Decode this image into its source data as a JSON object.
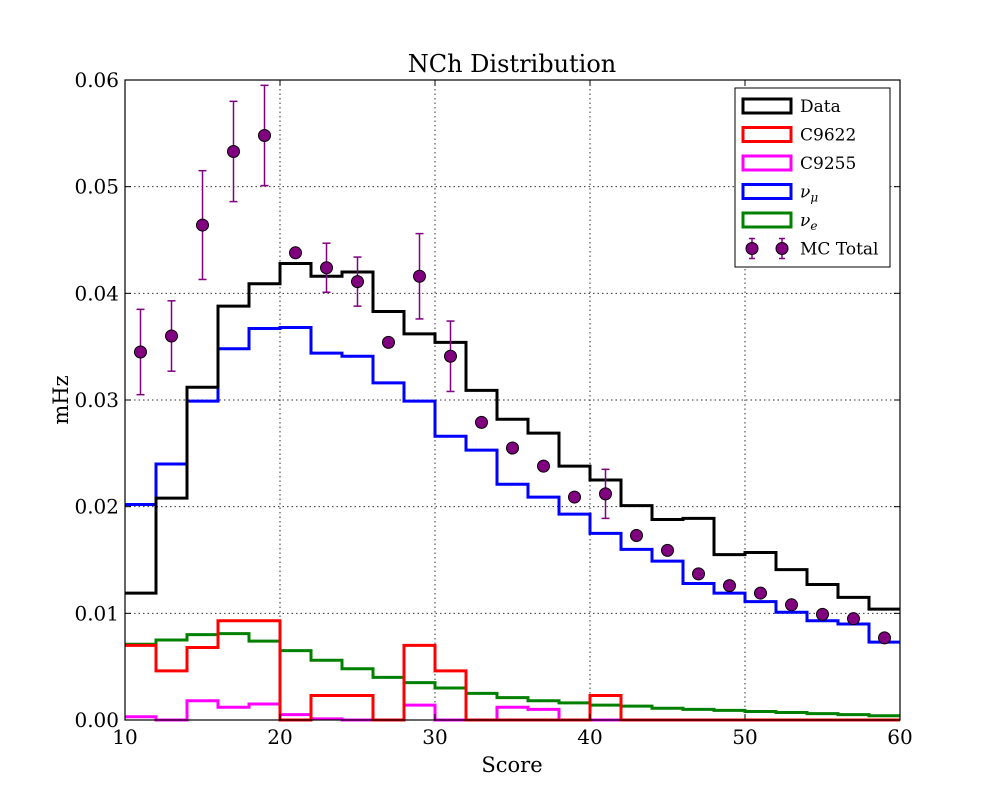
{
  "chart_data": {
    "type": "line",
    "title": "NCh Distribution",
    "xlabel": "Score",
    "ylabel": "mHz",
    "xlim": [
      10,
      60
    ],
    "ylim": [
      0,
      0.06
    ],
    "grid": true,
    "legend_placement": "top-right",
    "x_ticks": [
      10,
      20,
      30,
      40,
      50,
      60
    ],
    "y_ticks": [
      0.0,
      0.01,
      0.02,
      0.03,
      0.04,
      0.05,
      0.06
    ],
    "x_tick_labels": [
      "10",
      "20",
      "30",
      "40",
      "50",
      "60"
    ],
    "y_tick_labels": [
      "0.00",
      "0.01",
      "0.02",
      "0.03",
      "0.04",
      "0.05",
      "0.06"
    ],
    "bin_edges": [
      10,
      12,
      14,
      16,
      18,
      20,
      22,
      24,
      26,
      28,
      30,
      32,
      34,
      36,
      38,
      40,
      42,
      44,
      46,
      48,
      50,
      52,
      54,
      56,
      58,
      60
    ],
    "series": [
      {
        "name": "Data",
        "color": "#000000",
        "style": "step",
        "values": [
          0.0119,
          0.0208,
          0.0312,
          0.0388,
          0.0409,
          0.0428,
          0.0416,
          0.042,
          0.0383,
          0.0362,
          0.0354,
          0.0309,
          0.0282,
          0.0269,
          0.0238,
          0.0225,
          0.0201,
          0.0188,
          0.0189,
          0.0155,
          0.0157,
          0.0141,
          0.0127,
          0.0115,
          0.0104
        ]
      },
      {
        "name": "C9622",
        "color": "#ff0000",
        "style": "step",
        "values": [
          0.007,
          0.0046,
          0.0068,
          0.0093,
          0.0093,
          0.0,
          0.0023,
          0.0023,
          0.0,
          0.007,
          0.0046,
          0.0,
          0.0,
          0.0,
          0.0,
          0.0023,
          0.0,
          0.0,
          0.0,
          0.0,
          0.0,
          0.0,
          0.0,
          0.0,
          0.0
        ]
      },
      {
        "name": "C9255",
        "color": "#ff00ff",
        "style": "step",
        "values": [
          0.0003,
          0.0,
          0.0018,
          0.0012,
          0.0015,
          0.0005,
          0.0001,
          0.0,
          0.0,
          0.0014,
          0.0,
          0.0,
          0.0012,
          0.001,
          0.0,
          0.0,
          0.0,
          0.0,
          0.0,
          0.0,
          0.0,
          0.0,
          0.0,
          0.0,
          0.0
        ]
      },
      {
        "name": "ν_μ",
        "color": "#0000ff",
        "style": "step",
        "values": [
          0.0202,
          0.024,
          0.0299,
          0.0348,
          0.0367,
          0.0368,
          0.0344,
          0.0341,
          0.0316,
          0.0299,
          0.0266,
          0.0253,
          0.0221,
          0.0209,
          0.0193,
          0.0175,
          0.016,
          0.0149,
          0.0128,
          0.0119,
          0.0111,
          0.0101,
          0.0093,
          0.009,
          0.0073
        ]
      },
      {
        "name": "ν_e",
        "color": "#008000",
        "style": "step",
        "values": [
          0.0071,
          0.0075,
          0.008,
          0.0081,
          0.0074,
          0.0065,
          0.0056,
          0.0048,
          0.004,
          0.0035,
          0.003,
          0.0025,
          0.0021,
          0.0018,
          0.0016,
          0.0014,
          0.0013,
          0.0011,
          0.001,
          0.0009,
          0.0008,
          0.0007,
          0.0006,
          0.0005,
          0.0004
        ]
      },
      {
        "name": "MC Total",
        "color": "#800080",
        "style": "errorbar",
        "x": [
          11,
          13,
          15,
          17,
          19,
          21,
          23,
          25,
          27,
          29,
          31,
          33,
          35,
          37,
          39,
          41,
          43,
          45,
          47,
          49,
          51,
          53,
          55,
          57,
          59
        ],
        "values": [
          0.0345,
          0.036,
          0.0464,
          0.0533,
          0.0548,
          0.0438,
          0.0424,
          0.0411,
          0.0354,
          0.0416,
          0.0341,
          0.0279,
          0.0255,
          0.0238,
          0.0209,
          0.0212,
          0.0173,
          0.0159,
          0.0137,
          0.0126,
          0.0119,
          0.0108,
          0.0099,
          0.0095,
          0.0077
        ],
        "errors": [
          0.004,
          0.0033,
          0.0051,
          0.0047,
          0.0047,
          0,
          0.0023,
          0.0023,
          0,
          0.004,
          0.0033,
          0,
          0,
          0,
          0,
          0.0023,
          0,
          0,
          0,
          0,
          0,
          0,
          0,
          0,
          0
        ]
      }
    ],
    "legend": [
      {
        "label": "Data",
        "sym": "box",
        "color": "#000000"
      },
      {
        "label": "C9622",
        "sym": "box",
        "color": "#ff0000"
      },
      {
        "label": "C9255",
        "sym": "box",
        "color": "#ff00ff"
      },
      {
        "label": "ν",
        "sub": "μ",
        "sym": "box",
        "color": "#0000ff"
      },
      {
        "label": "ν",
        "sub": "e",
        "sym": "box",
        "color": "#008000"
      },
      {
        "label": "MC Total",
        "sym": "marker",
        "color": "#800080"
      }
    ]
  }
}
